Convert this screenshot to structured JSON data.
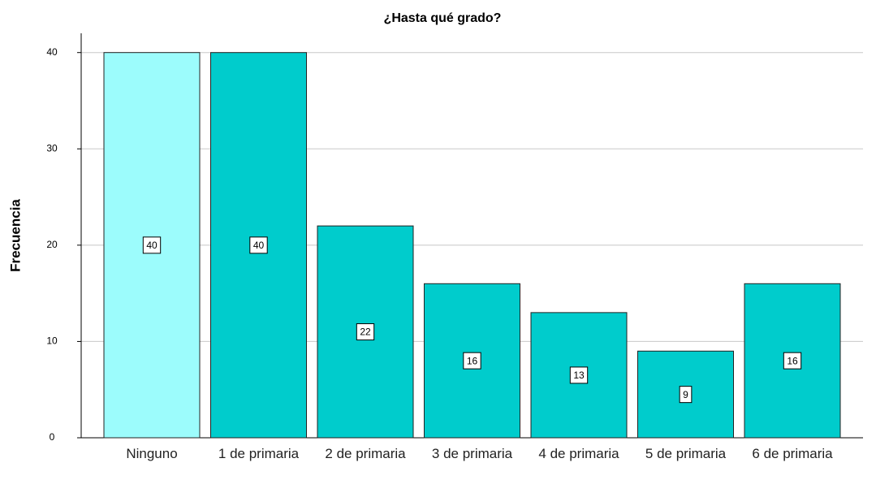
{
  "chart_data": {
    "type": "bar",
    "title": "¿Hasta qué grado?",
    "y_label": "Frecuencia",
    "categories": [
      "Ninguno",
      "1 de primaria",
      "2 de primaria",
      "3 de primaria",
      "4 de primaria",
      "5 de primaria",
      "6 de primaria"
    ],
    "values": [
      40,
      40,
      22,
      16,
      13,
      9,
      16
    ],
    "colors": [
      "#9cfcfc",
      "#00cccc",
      "#00cccc",
      "#00cccc",
      "#00cccc",
      "#00cccc",
      "#00cccc"
    ],
    "ylim": [
      0,
      42
    ],
    "yticks": [
      0,
      10,
      20,
      30,
      40
    ],
    "grid": true
  }
}
